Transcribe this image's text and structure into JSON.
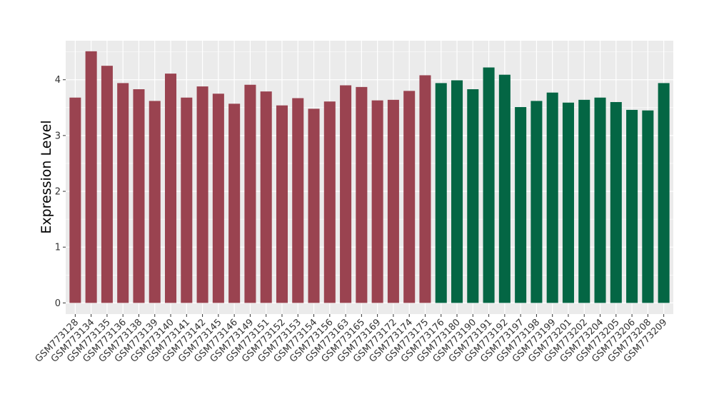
{
  "chart_data": {
    "type": "bar",
    "title": "",
    "xlabel": "",
    "ylabel": "Expression Level",
    "ylim": [
      -0.2,
      4.7
    ],
    "yticks": [
      0,
      1,
      2,
      3,
      4
    ],
    "grid": true,
    "legend": "none",
    "categories": [
      "GSM773128",
      "GSM773134",
      "GSM773135",
      "GSM773136",
      "GSM773138",
      "GSM773139",
      "GSM773140",
      "GSM773141",
      "GSM773142",
      "GSM773145",
      "GSM773146",
      "GSM773149",
      "GSM773151",
      "GSM773152",
      "GSM773153",
      "GSM773154",
      "GSM773156",
      "GSM773163",
      "GSM773165",
      "GSM773169",
      "GSM773172",
      "GSM773174",
      "GSM773175",
      "GSM773176",
      "GSM773180",
      "GSM773190",
      "GSM773191",
      "GSM773192",
      "GSM773197",
      "GSM773198",
      "GSM773199",
      "GSM773201",
      "GSM773202",
      "GSM773204",
      "GSM773205",
      "GSM773206",
      "GSM773208",
      "GSM773209"
    ],
    "values": [
      3.68,
      4.51,
      4.25,
      3.94,
      3.83,
      3.62,
      4.11,
      3.68,
      3.88,
      3.75,
      3.57,
      3.91,
      3.79,
      3.54,
      3.67,
      3.48,
      3.61,
      3.9,
      3.87,
      3.63,
      3.64,
      3.8,
      4.08,
      3.94,
      3.99,
      3.83,
      4.22,
      4.09,
      3.51,
      3.62,
      3.77,
      3.59,
      3.64,
      3.68,
      3.6,
      3.46,
      3.45,
      3.94
    ],
    "group_colors": {
      "group1": "#9a4350",
      "group2": "#046644"
    },
    "group_split_index": 23,
    "panel_background": "#ebebeb",
    "gridline_color": "#ffffff"
  }
}
